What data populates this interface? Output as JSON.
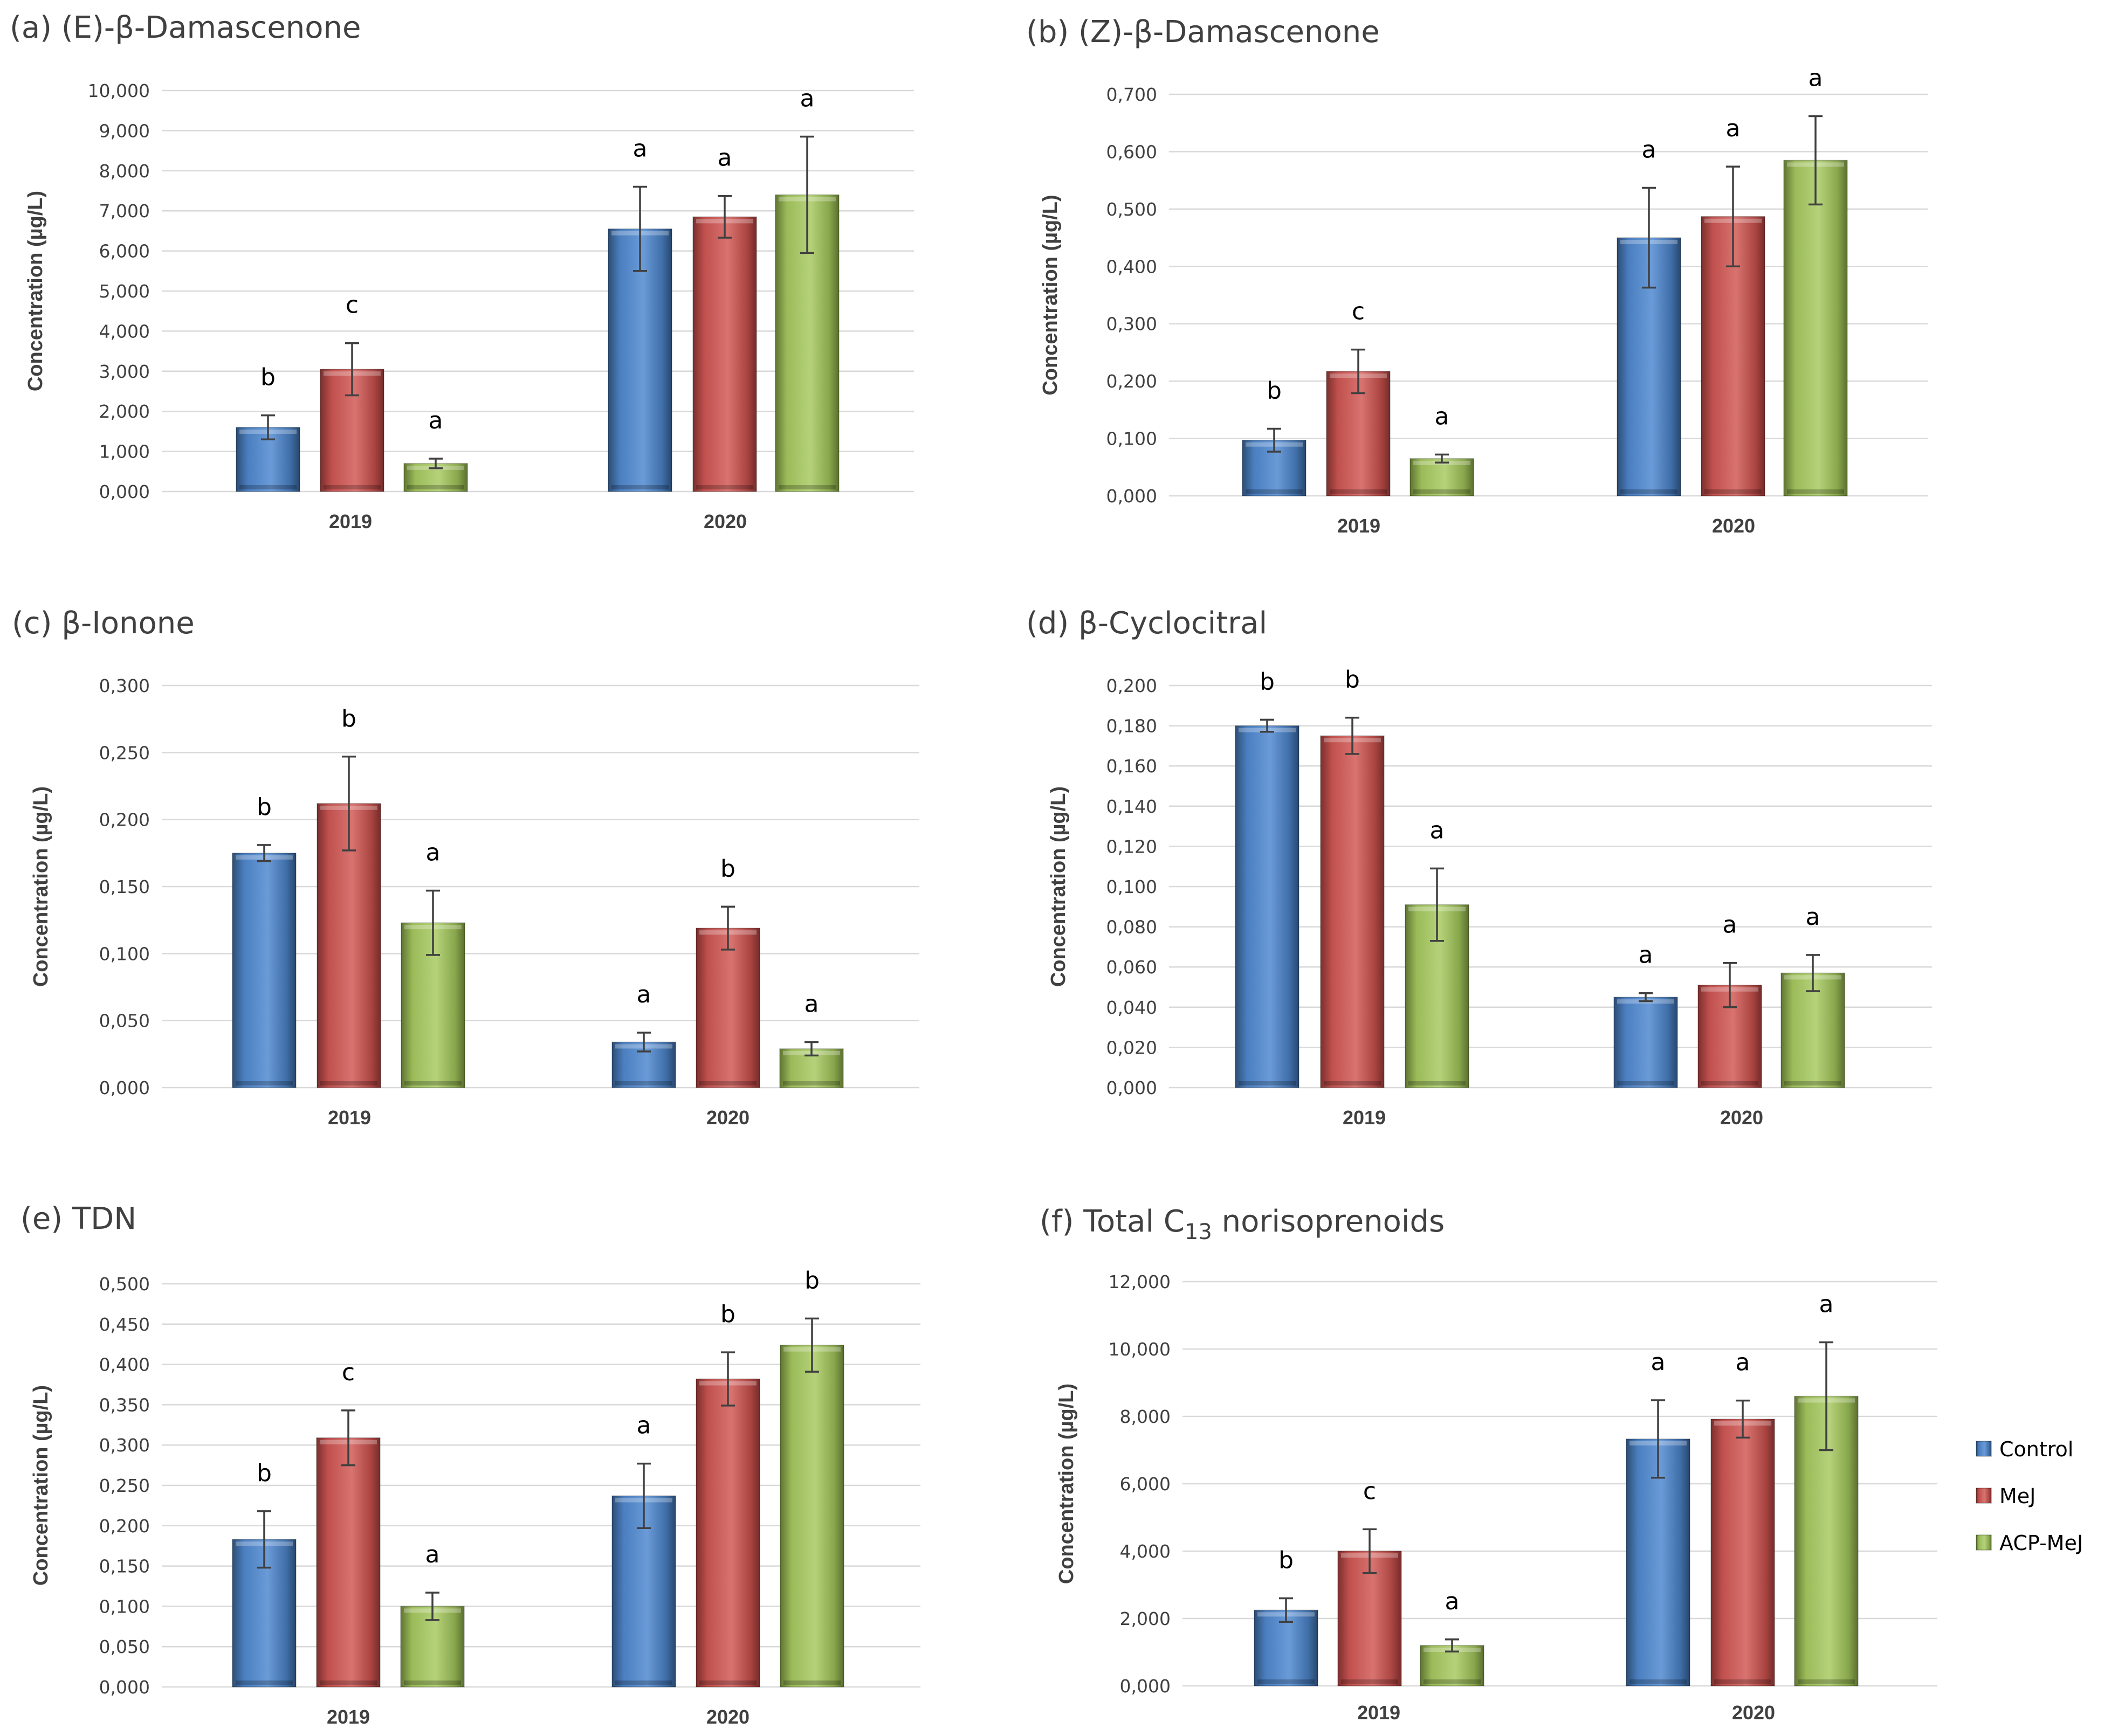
{
  "figure": {
    "legend": [
      {
        "label": "Control",
        "color": "#4a7ebf"
      },
      {
        "label": "MeJ",
        "color": "#c0504d"
      },
      {
        "label": "ACP-MeJ",
        "color": "#9bbb59"
      }
    ]
  },
  "chart_data": [
    {
      "id": "a",
      "type": "bar",
      "title": "(a) (E)-β-Damascenone",
      "ylabel": "Concentration (µg/L)",
      "xlabel": "",
      "categories": [
        "2019",
        "2020"
      ],
      "ylim": [
        0,
        10
      ],
      "yticks": [
        "0,000",
        "1,000",
        "2,000",
        "3,000",
        "4,000",
        "5,000",
        "6,000",
        "7,000",
        "8,000",
        "9,000",
        "10,000"
      ],
      "series": [
        {
          "name": "Control",
          "values": [
            1.6,
            6.55
          ],
          "errors": [
            0.3,
            1.05
          ],
          "labels": [
            "b",
            "a"
          ]
        },
        {
          "name": "MeJ",
          "values": [
            3.05,
            6.85
          ],
          "errors": [
            0.65,
            0.52
          ],
          "labels": [
            "c",
            "a"
          ]
        },
        {
          "name": "ACP-MeJ",
          "values": [
            0.7,
            7.4
          ],
          "errors": [
            0.12,
            1.45
          ],
          "labels": [
            "a",
            "a"
          ]
        }
      ]
    },
    {
      "id": "b",
      "type": "bar",
      "title": "(b) (Z)-β-Damascenone",
      "ylabel": "Concentration (µg/L)",
      "xlabel": "",
      "categories": [
        "2019",
        "2020"
      ],
      "ylim": [
        0,
        0.7
      ],
      "yticks": [
        "0,000",
        "0,100",
        "0,200",
        "0,300",
        "0,400",
        "0,500",
        "0,600",
        "0,700"
      ],
      "series": [
        {
          "name": "Control",
          "values": [
            0.097,
            0.45
          ],
          "errors": [
            0.02,
            0.087
          ],
          "labels": [
            "b",
            "a"
          ]
        },
        {
          "name": "MeJ",
          "values": [
            0.217,
            0.487
          ],
          "errors": [
            0.038,
            0.087
          ],
          "labels": [
            "c",
            "a"
          ]
        },
        {
          "name": "ACP-MeJ",
          "values": [
            0.065,
            0.585
          ],
          "errors": [
            0.007,
            0.077
          ],
          "labels": [
            "a",
            "a"
          ]
        }
      ]
    },
    {
      "id": "c",
      "type": "bar",
      "title": "(c) β-Ionone",
      "ylabel": "Concentration (µg/L)",
      "xlabel": "",
      "categories": [
        "2019",
        "2020"
      ],
      "ylim": [
        0,
        0.3
      ],
      "yticks": [
        "0,000",
        "0,050",
        "0,100",
        "0,150",
        "0,200",
        "0,250",
        "0,300"
      ],
      "series": [
        {
          "name": "Control",
          "values": [
            0.175,
            0.034
          ],
          "errors": [
            0.006,
            0.007
          ],
          "labels": [
            "b",
            "a"
          ]
        },
        {
          "name": "MeJ",
          "values": [
            0.212,
            0.119
          ],
          "errors": [
            0.035,
            0.016
          ],
          "labels": [
            "b",
            "b"
          ]
        },
        {
          "name": "ACP-MeJ",
          "values": [
            0.123,
            0.029
          ],
          "errors": [
            0.024,
            0.005
          ],
          "labels": [
            "a",
            "a"
          ]
        }
      ]
    },
    {
      "id": "d",
      "type": "bar",
      "title": "(d) β-Cyclocitral",
      "ylabel": "Concentration (µg/L)",
      "xlabel": "",
      "categories": [
        "2019",
        "2020"
      ],
      "ylim": [
        0,
        0.2
      ],
      "yticks": [
        "0,000",
        "0,020",
        "0,040",
        "0,060",
        "0,080",
        "0,100",
        "0,120",
        "0,140",
        "0,160",
        "0,180",
        "0,200"
      ],
      "series": [
        {
          "name": "Control",
          "values": [
            0.18,
            0.045
          ],
          "errors": [
            0.003,
            0.002
          ],
          "labels": [
            "b",
            "a"
          ]
        },
        {
          "name": "MeJ",
          "values": [
            0.175,
            0.051
          ],
          "errors": [
            0.009,
            0.011
          ],
          "labels": [
            "b",
            "a"
          ]
        },
        {
          "name": "ACP-MeJ",
          "values": [
            0.091,
            0.057
          ],
          "errors": [
            0.018,
            0.009
          ],
          "labels": [
            "a",
            "a"
          ]
        }
      ]
    },
    {
      "id": "e",
      "type": "bar",
      "title": "(e) TDN",
      "ylabel": "Concentration (µg/L)",
      "xlabel": "",
      "categories": [
        "2019",
        "2020"
      ],
      "ylim": [
        0,
        0.5
      ],
      "yticks": [
        "0,000",
        "0,050",
        "0,100",
        "0,150",
        "0,200",
        "0,250",
        "0,300",
        "0,350",
        "0,400",
        "0,450",
        "0,500"
      ],
      "series": [
        {
          "name": "Control",
          "values": [
            0.183,
            0.237
          ],
          "errors": [
            0.035,
            0.04
          ],
          "labels": [
            "b",
            "a"
          ]
        },
        {
          "name": "MeJ",
          "values": [
            0.309,
            0.382
          ],
          "errors": [
            0.034,
            0.033
          ],
          "labels": [
            "c",
            "b"
          ]
        },
        {
          "name": "ACP-MeJ",
          "values": [
            0.1,
            0.424
          ],
          "errors": [
            0.017,
            0.033
          ],
          "labels": [
            "a",
            "b"
          ]
        }
      ]
    },
    {
      "id": "f",
      "type": "bar",
      "title": "(f) Total C",
      "title_sub": "13",
      "title_rest": " norisoprenoids",
      "ylabel": "Concentration (µg/L)",
      "xlabel": "",
      "categories": [
        "2019",
        "2020"
      ],
      "ylim": [
        0,
        12
      ],
      "yticks": [
        "0,000",
        "2,000",
        "4,000",
        "6,000",
        "8,000",
        "10,000",
        "12,000"
      ],
      "series": [
        {
          "name": "Control",
          "values": [
            2.25,
            7.33
          ],
          "errors": [
            0.35,
            1.15
          ],
          "labels": [
            "b",
            "a"
          ]
        },
        {
          "name": "MeJ",
          "values": [
            4.0,
            7.92
          ],
          "errors": [
            0.65,
            0.55
          ],
          "labels": [
            "c",
            "a"
          ]
        },
        {
          "name": "ACP-MeJ",
          "values": [
            1.2,
            8.6
          ],
          "errors": [
            0.18,
            1.6
          ],
          "labels": [
            "a",
            "a"
          ]
        }
      ]
    }
  ]
}
